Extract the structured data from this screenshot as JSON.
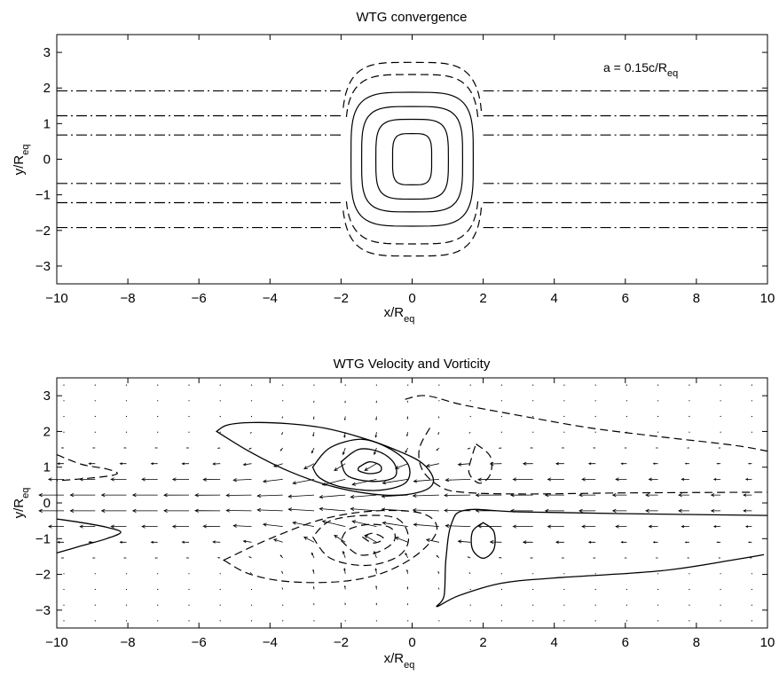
{
  "chart_data": [
    {
      "type": "contour",
      "title": "WTG convergence",
      "xlabel": "x/R",
      "xlabel_sub": "eq",
      "ylabel": "y/R",
      "ylabel_sub": "eq",
      "xlim": [
        -10,
        10
      ],
      "ylim": [
        -3.5,
        3.5
      ],
      "xticks": [
        -10,
        -8,
        -6,
        -4,
        -2,
        0,
        2,
        4,
        6,
        8,
        10
      ],
      "yticks": [
        -3,
        -2,
        -1,
        0,
        1,
        2,
        3
      ],
      "annotation": "a = 0.15c/R",
      "annotation_sub": "eq",
      "grid": false,
      "legend": "none",
      "series": [
        {
          "style": "solid",
          "shape": "closed-ellipse",
          "center": [
            0,
            0
          ],
          "half_widths": [
            [
              0.55,
              0.72
            ],
            [
              1.02,
              1.12
            ],
            [
              1.42,
              1.48
            ],
            [
              1.72,
              1.88
            ]
          ]
        },
        {
          "style": "dashed",
          "shape": "open-cap",
          "center": [
            0,
            0
          ],
          "half_widths": [
            [
              1.88,
              2.38
            ],
            [
              1.98,
              2.72
            ]
          ]
        },
        {
          "style": "dash-dot",
          "shape": "horizontal-line",
          "y": [
            1.92,
            1.22,
            0.68,
            -0.68,
            -1.22,
            -1.92
          ],
          "x_gap": [
            -2,
            2
          ]
        }
      ]
    },
    {
      "type": "contour+quiver",
      "title": "WTG Velocity and Vorticity",
      "xlabel": "x/R",
      "xlabel_sub": "eq",
      "ylabel": "y/R",
      "ylabel_sub": "eq",
      "xlim": [
        -10,
        10
      ],
      "ylim": [
        -3.5,
        3.5
      ],
      "xticks": [
        -10,
        -8,
        -6,
        -4,
        -2,
        0,
        2,
        4,
        6,
        8,
        10
      ],
      "yticks": [
        -3,
        -2,
        -1,
        0,
        1,
        2,
        3
      ],
      "grid": false,
      "legend": "none",
      "solid_contours": [
        [
          [
            -5.5,
            2.0
          ],
          [
            -5.2,
            2.18
          ],
          [
            -4.5,
            2.25
          ],
          [
            -3.5,
            2.22
          ],
          [
            -2.5,
            2.1
          ],
          [
            -1.5,
            1.85
          ],
          [
            -0.5,
            1.5
          ],
          [
            0.3,
            1.1
          ],
          [
            0.6,
            0.6
          ],
          [
            0.2,
            0.3
          ],
          [
            -0.8,
            0.22
          ],
          [
            -2.2,
            0.45
          ],
          [
            -3.5,
            0.9
          ],
          [
            -4.6,
            1.45
          ],
          [
            -5.5,
            2.0
          ]
        ],
        [
          [
            -2.8,
            1.0
          ],
          [
            -2.3,
            1.55
          ],
          [
            -1.4,
            1.78
          ],
          [
            -0.6,
            1.5
          ],
          [
            -0.1,
            1.05
          ],
          [
            -0.2,
            0.55
          ],
          [
            -1.0,
            0.35
          ],
          [
            -2.0,
            0.45
          ],
          [
            -2.6,
            0.7
          ],
          [
            -2.8,
            1.0
          ]
        ],
        [
          [
            -2.0,
            1.15
          ],
          [
            -1.5,
            1.5
          ],
          [
            -0.9,
            1.42
          ],
          [
            -0.5,
            1.1
          ],
          [
            -0.5,
            0.72
          ],
          [
            -1.1,
            0.6
          ],
          [
            -1.8,
            0.75
          ],
          [
            -2.0,
            1.15
          ]
        ],
        [
          [
            -1.5,
            1.0
          ],
          [
            -1.2,
            1.15
          ],
          [
            -0.9,
            1.05
          ],
          [
            -0.9,
            0.88
          ],
          [
            -1.2,
            0.82
          ],
          [
            -1.5,
            0.9
          ],
          [
            -1.5,
            1.0
          ]
        ],
        [
          [
            10.0,
            -0.35
          ],
          [
            6.0,
            -0.3
          ],
          [
            3.0,
            -0.25
          ],
          [
            1.5,
            -0.2
          ],
          [
            1.1,
            -0.6
          ],
          [
            0.95,
            -1.6
          ],
          [
            0.9,
            -2.6
          ],
          [
            0.7,
            -2.9
          ],
          [
            1.3,
            -2.6
          ],
          [
            2.5,
            -2.25
          ],
          [
            4.0,
            -2.1
          ],
          [
            7.0,
            -1.9
          ],
          [
            9.0,
            -1.6
          ],
          [
            9.9,
            -1.45
          ]
        ],
        [
          [
            2.0,
            -0.55
          ],
          [
            2.3,
            -0.8
          ],
          [
            2.3,
            -1.3
          ],
          [
            2.0,
            -1.55
          ],
          [
            1.7,
            -1.3
          ],
          [
            1.7,
            -0.8
          ],
          [
            2.0,
            -0.55
          ]
        ],
        [
          [
            -10.0,
            -0.45
          ],
          [
            -9.3,
            -0.55
          ],
          [
            -8.6,
            -0.68
          ],
          [
            -8.2,
            -0.82
          ],
          [
            -8.6,
            -1.0
          ],
          [
            -9.3,
            -1.2
          ],
          [
            -10.0,
            -1.4
          ]
        ]
      ],
      "dashed_contours": [
        [
          [
            -5.3,
            -1.6
          ],
          [
            -4.6,
            -1.98
          ],
          [
            -3.5,
            -2.2
          ],
          [
            -2.0,
            -2.2
          ],
          [
            -0.8,
            -1.95
          ],
          [
            0.2,
            -1.4
          ],
          [
            0.7,
            -0.75
          ],
          [
            0.3,
            -0.3
          ],
          [
            -1.0,
            -0.22
          ],
          [
            -2.5,
            -0.45
          ],
          [
            -4.0,
            -1.0
          ],
          [
            -5.3,
            -1.6
          ]
        ],
        [
          [
            -2.8,
            -0.95
          ],
          [
            -2.3,
            -1.55
          ],
          [
            -1.3,
            -1.75
          ],
          [
            -0.4,
            -1.5
          ],
          [
            -0.1,
            -1.0
          ],
          [
            -0.4,
            -0.45
          ],
          [
            -1.3,
            -0.35
          ],
          [
            -2.3,
            -0.5
          ],
          [
            -2.8,
            -0.95
          ]
        ],
        [
          [
            -2.0,
            -1.05
          ],
          [
            -1.5,
            -1.45
          ],
          [
            -0.9,
            -1.35
          ],
          [
            -0.5,
            -1.05
          ],
          [
            -0.6,
            -0.7
          ],
          [
            -1.2,
            -0.6
          ],
          [
            -1.8,
            -0.75
          ],
          [
            -2.0,
            -1.05
          ]
        ],
        [
          [
            -1.4,
            -0.95
          ],
          [
            -1.1,
            -1.12
          ],
          [
            -0.8,
            -1.0
          ],
          [
            -1.1,
            -0.85
          ],
          [
            -1.4,
            -0.95
          ]
        ],
        [
          [
            -0.2,
            2.9
          ],
          [
            0.4,
            3.0
          ],
          [
            1.4,
            2.75
          ],
          [
            3.0,
            2.45
          ],
          [
            5.0,
            2.1
          ],
          [
            7.0,
            1.85
          ],
          [
            9.0,
            1.62
          ],
          [
            10.0,
            1.45
          ]
        ],
        [
          [
            0.5,
            2.1
          ],
          [
            0.2,
            1.5
          ],
          [
            0.3,
            0.9
          ],
          [
            0.8,
            0.45
          ],
          [
            1.4,
            0.3
          ],
          [
            3.0,
            0.25
          ],
          [
            6.0,
            0.28
          ],
          [
            10.0,
            0.3
          ]
        ],
        [
          [
            1.8,
            1.65
          ],
          [
            2.2,
            1.3
          ],
          [
            2.2,
            0.8
          ],
          [
            1.9,
            0.55
          ],
          [
            1.6,
            0.85
          ],
          [
            1.7,
            1.35
          ],
          [
            1.8,
            1.65
          ]
        ],
        [
          [
            -10.0,
            1.35
          ],
          [
            -9.3,
            1.08
          ],
          [
            -8.6,
            0.95
          ],
          [
            -8.3,
            0.82
          ],
          [
            -8.8,
            0.72
          ],
          [
            -10.0,
            0.62
          ]
        ]
      ],
      "quiver": "velocity field on regular grid (x step 0.88, y step 0.44)"
    }
  ]
}
